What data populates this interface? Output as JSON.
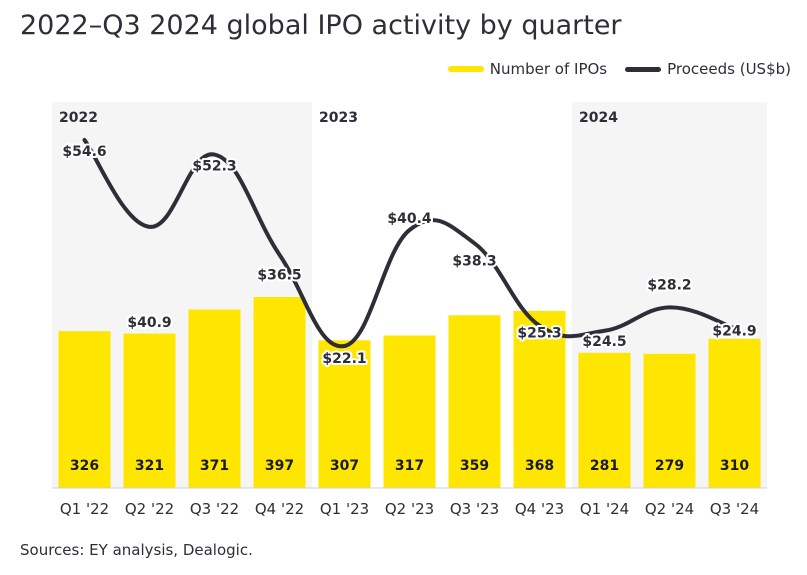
{
  "title": "2022–Q3 2024 global IPO activity by quarter",
  "source": "Sources: EY analysis, Dealogic.",
  "colors": {
    "bar": "#ffe600",
    "line": "#2e2e38",
    "band": "#f5f5f5"
  },
  "chart_data": {
    "type": "bar",
    "categories": [
      "Q1 '22",
      "Q2 '22",
      "Q3 '22",
      "Q4 '22",
      "Q1 '23",
      "Q2 '23",
      "Q3 '23",
      "Q4 '23",
      "Q1 '24",
      "Q2 '24",
      "Q3 '24"
    ],
    "series": [
      {
        "name": "Number of IPOs",
        "type": "bar",
        "values": [
          326,
          321,
          371,
          397,
          307,
          317,
          359,
          368,
          281,
          279,
          310
        ]
      },
      {
        "name": "Proceeds (US$b)",
        "type": "line",
        "values": [
          54.6,
          40.9,
          52.3,
          36.5,
          22.1,
          40.4,
          38.3,
          25.3,
          24.5,
          28.2,
          24.9
        ],
        "labels": [
          "$54.6",
          "$40.9",
          "$52.3",
          "$36.5",
          "$22.1",
          "$40.4",
          "$38.3",
          "$25.3",
          "$24.5",
          "$28.2",
          "$24.9"
        ]
      }
    ],
    "year_groups": [
      {
        "label": "2022",
        "start": 0,
        "end": 3,
        "shaded": true
      },
      {
        "label": "2023",
        "start": 4,
        "end": 7,
        "shaded": false
      },
      {
        "label": "2024",
        "start": 8,
        "end": 10,
        "shaded": true
      }
    ],
    "legend": [
      "Number of IPOs",
      "Proceeds (US$b)"
    ],
    "legend_position": "top-right"
  }
}
